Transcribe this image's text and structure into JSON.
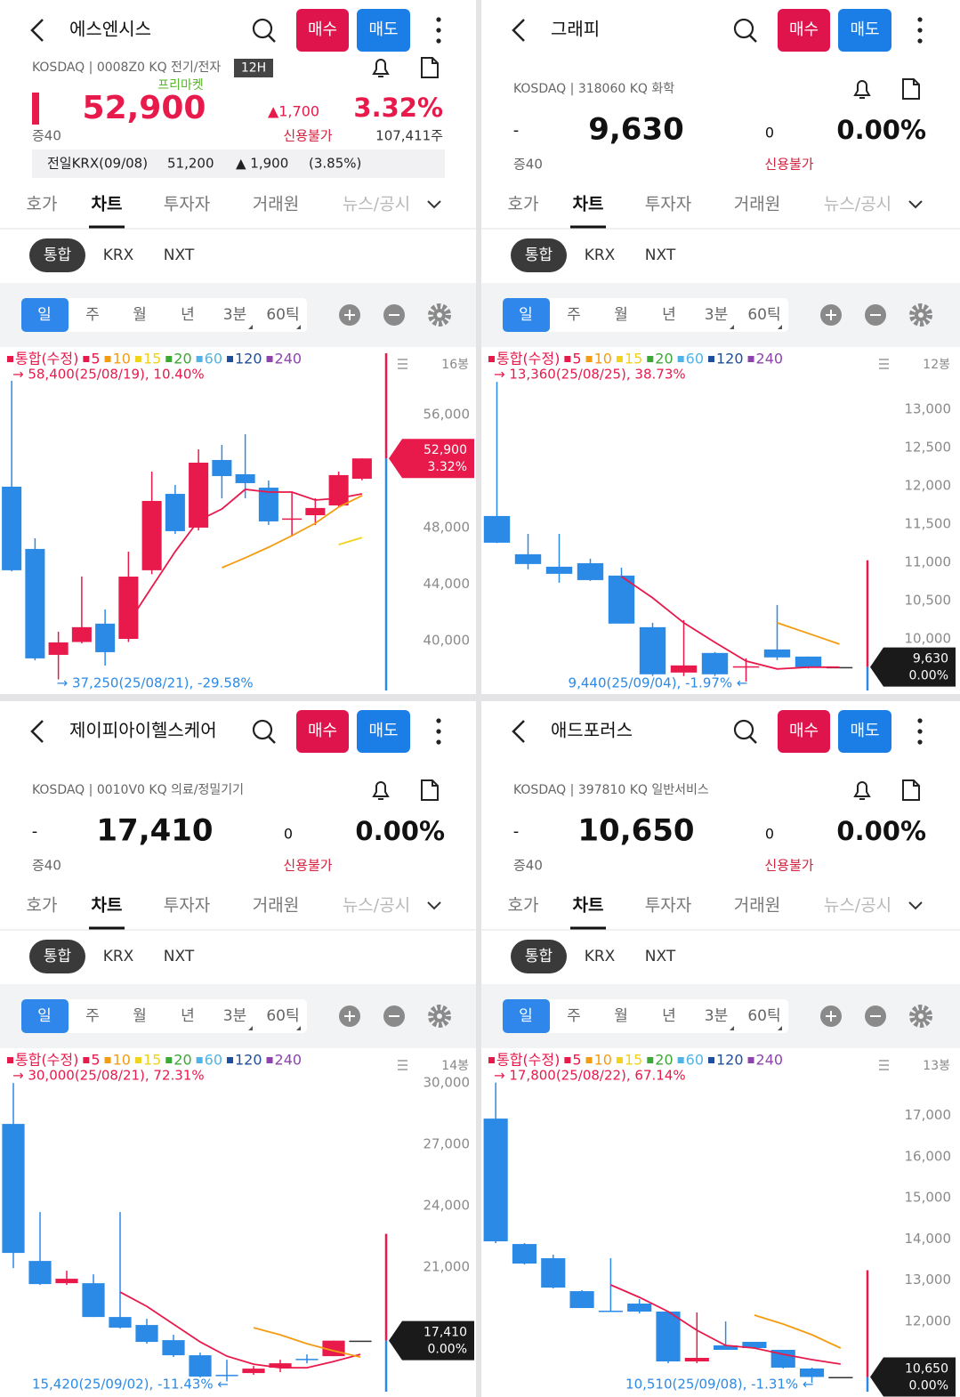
{
  "common": {
    "buy": "매수",
    "sell": "매도",
    "tabs": [
      "호가",
      "차트",
      "투자자",
      "거래원",
      "뉴스/공시"
    ],
    "markets": [
      "통합",
      "KRX",
      "NXT"
    ],
    "periods": [
      "일",
      "주",
      "월",
      "년",
      "3분",
      "60틱"
    ],
    "up_color": "#e8194b",
    "down_color": "#2b8ae6",
    "legend": [
      {
        "name": "통합(수정)",
        "color": "#e8194b"
      },
      {
        "name": "5",
        "color": "#e8194b"
      },
      {
        "name": "10",
        "color": "#f39c12"
      },
      {
        "name": "15",
        "color": "#f1d21c"
      },
      {
        "name": "20",
        "color": "#3aa935"
      },
      {
        "name": "60",
        "color": "#4fb3e8"
      },
      {
        "name": "120",
        "color": "#1f4e9c"
      },
      {
        "name": "240",
        "color": "#8e44ad"
      }
    ]
  },
  "panels": [
    {
      "name": "에스엔시스",
      "market": "KOSDAQ | 0008Z0 KQ 전기/전자",
      "session": "12H",
      "premarket": "프리마켓",
      "price": "52,900",
      "change": "▲1,700",
      "rate": "3.32%",
      "margin": "증40",
      "credit": "신용불가",
      "volume": "107,411주",
      "krx": [
        "전일KRX(09/08)",
        "51,200",
        "▲ 1,900",
        "(3.85%)"
      ],
      "color": "#e8194b",
      "chart": {
        "type": "candlestick",
        "count": "16봉",
        "max_label": "→ 58,400(25/08/19), 10.40%",
        "min_label": "→ 37,250(25/08/21), -29.58%",
        "ylim": [
          36340,
          60600
        ],
        "yticks": [
          {
            "value": 56000,
            "label": "56,000"
          },
          {
            "value": 48000,
            "label": "48,000"
          },
          {
            "value": 44000,
            "label": "44,000"
          },
          {
            "value": 40000,
            "label": "40,000"
          }
        ],
        "open": [
          50900,
          46490,
          38990,
          39900,
          41200,
          40120,
          44980,
          50390,
          48000,
          52790,
          51780,
          50830,
          48600,
          48880,
          49570,
          51460
        ],
        "high": [
          58400,
          47240,
          40630,
          44540,
          42200,
          46300,
          51970,
          51020,
          53540,
          53860,
          54610,
          51340,
          50520,
          50080,
          51970,
          52900
        ],
        "low": [
          44900,
          38600,
          37250,
          39800,
          38230,
          39900,
          44700,
          47550,
          47800,
          50080,
          50080,
          48190,
          47370,
          48190,
          49450,
          51350
        ],
        "close": [
          44980,
          38740,
          39870,
          40950,
          39180,
          44530,
          49890,
          47750,
          52600,
          51650,
          51150,
          48440,
          48650,
          49390,
          51720,
          52900
        ],
        "ma": [
          {
            "color": "#e8194b",
            "values": [
              null,
              null,
              null,
              null,
              null,
              41260,
              43780,
              46300,
              48500,
              49320,
              50710,
              50520,
              50520,
              49950,
              50080,
              50390
            ]
          },
          {
            "color": "#f39c12",
            "values": [
              null,
              null,
              null,
              null,
              null,
              null,
              null,
              null,
              null,
              45160,
              45860,
              46610,
              47430,
              48310,
              49450,
              50270
            ]
          },
          {
            "color": "#f1d21c",
            "values": [
              null,
              null,
              null,
              null,
              null,
              null,
              null,
              null,
              null,
              null,
              null,
              null,
              null,
              null,
              46800,
              47300
            ]
          }
        ],
        "tag": [
          "52,900",
          "3.32%"
        ],
        "tag_color": "#e8194b"
      }
    },
    {
      "name": "그래피",
      "market": "KOSDAQ | 318060 KQ 화학",
      "dash": "-",
      "price": "9,630",
      "change": "0",
      "rate": "0.00%",
      "margin": "증40",
      "credit": "신용불가",
      "color": "#111111",
      "chart": {
        "type": "candlestick",
        "count": "12봉",
        "max_label": "→ 13,360(25/08/25), 38.73%",
        "min_label": "9,440(25/09/04), -1.97% ←",
        "ylim": [
          9300,
          13780
        ],
        "yticks": [
          {
            "value": 13000,
            "label": "13,000"
          },
          {
            "value": 12500,
            "label": "12,500"
          },
          {
            "value": 12000,
            "label": "12,000"
          },
          {
            "value": 11500,
            "label": "11,500"
          },
          {
            "value": 11000,
            "label": "11,000"
          },
          {
            "value": 10500,
            "label": "10,500"
          },
          {
            "value": 10000,
            "label": "10,000"
          }
        ],
        "open": [
          11605,
          11105,
          10942,
          10988,
          10826,
          10151,
          9558,
          9814,
          9628,
          9860,
          9767,
          9630
        ],
        "high": [
          13360,
          11372,
          11372,
          11047,
          10930,
          10209,
          10244,
          9826,
          9744,
          10442,
          9767,
          9630
        ],
        "low": [
          11250,
          10907,
          10733,
          10756,
          10198,
          9512,
          9512,
          9512,
          9440,
          9721,
          9610,
          9630
        ],
        "close": [
          11256,
          10977,
          10849,
          10767,
          10198,
          9535,
          9651,
          9535,
          9640,
          9756,
          9630,
          9630
        ],
        "ma": [
          {
            "color": "#e8194b",
            "values": [
              null,
              null,
              null,
              null,
              10814,
              10535,
              10209,
              9953,
              9709,
              9605,
              9628,
              9628
            ]
          },
          {
            "color": "#f39c12",
            "values": [
              null,
              null,
              null,
              null,
              null,
              null,
              null,
              null,
              null,
              10209,
              10070,
              9930
            ]
          }
        ],
        "tag": [
          "9,630",
          "0.00%"
        ],
        "tag_color": "#1a1a1a"
      }
    },
    {
      "name": "제이피아이헬스케어",
      "market": "KOSDAQ | 0010V0 KQ 의료/정밀기기",
      "dash": "-",
      "price": "17,410",
      "change": "0",
      "rate": "0.00%",
      "margin": "증40",
      "credit": "신용불가",
      "color": "#111111",
      "chart": {
        "type": "candlestick",
        "count": "14봉",
        "max_label": "→ 30,000(25/08/21), 72.31%",
        "min_label": "15,420(25/09/02), -11.43% ←",
        "ylim": [
          14830,
          31570
        ],
        "yticks": [
          {
            "value": 30000,
            "label": "30,000"
          },
          {
            "value": 27000,
            "label": "27,000"
          },
          {
            "value": 24000,
            "label": "24,000"
          },
          {
            "value": 21000,
            "label": "21,000"
          }
        ],
        "open": [
          28000,
          21304,
          20217,
          20217,
          18565,
          18174,
          17435,
          16696,
          15740,
          15826,
          16087,
          16522,
          16652,
          17410
        ],
        "high": [
          30000,
          23696,
          20826,
          20652,
          23696,
          18478,
          17696,
          16826,
          16478,
          16174,
          16478,
          16740,
          17410,
          17410
        ],
        "low": [
          20957,
          20130,
          20130,
          18565,
          18000,
          17261,
          16609,
          15609,
          15420,
          15740,
          15870,
          16304,
          16652,
          17410
        ],
        "close": [
          21696,
          20174,
          20435,
          18565,
          18043,
          17348,
          16696,
          15652,
          15700,
          16043,
          16304,
          16478,
          17410,
          17410
        ],
        "ma": [
          {
            "color": "#e8194b",
            "values": [
              null,
              null,
              null,
              null,
              19783,
              19087,
              18217,
              17348,
              16652,
              16261,
              16087,
              16087,
              16391,
              16739
            ]
          },
          {
            "color": "#f39c12",
            "values": [
              null,
              null,
              null,
              null,
              null,
              null,
              null,
              null,
              null,
              18043,
              17696,
              17261,
              16913,
              16609
            ]
          }
        ],
        "tag": [
          "17,410",
          "0.00%"
        ],
        "tag_color": "#1a1a1a"
      }
    },
    {
      "name": "애드포러스",
      "market": "KOSDAQ | 397810 KQ 일반서비스",
      "dash": "-",
      "price": "10,650",
      "change": "0",
      "rate": "0.00%",
      "margin": "증40",
      "credit": "신용불가",
      "color": "#111111",
      "chart": {
        "type": "candlestick",
        "count": "13봉",
        "max_label": "→ 17,800(25/08/22), 67.14%",
        "min_label": "10,510(25/09/08), -1.31% ←",
        "ylim": [
          10250,
          18570
        ],
        "yticks": [
          {
            "value": 17000,
            "label": "17,000"
          },
          {
            "value": 16000,
            "label": "16,000"
          },
          {
            "value": 15000,
            "label": "15,000"
          },
          {
            "value": 14000,
            "label": "14,000"
          },
          {
            "value": 13000,
            "label": "13,000"
          },
          {
            "value": 12000,
            "label": "12,000"
          }
        ],
        "open": [
          16925,
          13879,
          13534,
          12734,
          12260,
          12432,
          12238,
          11028,
          11417,
          11503,
          11309,
          10855,
          10650
        ],
        "high": [
          17800,
          13900,
          13620,
          12756,
          13534,
          12540,
          12238,
          12216,
          12000,
          11503,
          11309,
          10877,
          10650
        ],
        "low": [
          13900,
          13380,
          12800,
          12324,
          12238,
          12194,
          10985,
          10985,
          11309,
          11330,
          10855,
          10510,
          10650
        ],
        "close": [
          13944,
          13404,
          12821,
          12324,
          12240,
          12238,
          11028,
          11114,
          11309,
          11352,
          10877,
          10650,
          10650
        ],
        "ma": [
          {
            "color": "#e8194b",
            "values": [
              null,
              null,
              null,
              null,
              12886,
              12583,
              12238,
              11784,
              11417,
              11352,
              11201,
              11071,
              10963
            ]
          },
          {
            "color": "#f39c12",
            "values": [
              null,
              null,
              null,
              null,
              null,
              null,
              null,
              null,
              null,
              12151,
              11935,
              11676,
              11352
            ]
          }
        ],
        "tag": [
          "10,650",
          "0.00%"
        ],
        "tag_color": "#1a1a1a"
      }
    }
  ]
}
